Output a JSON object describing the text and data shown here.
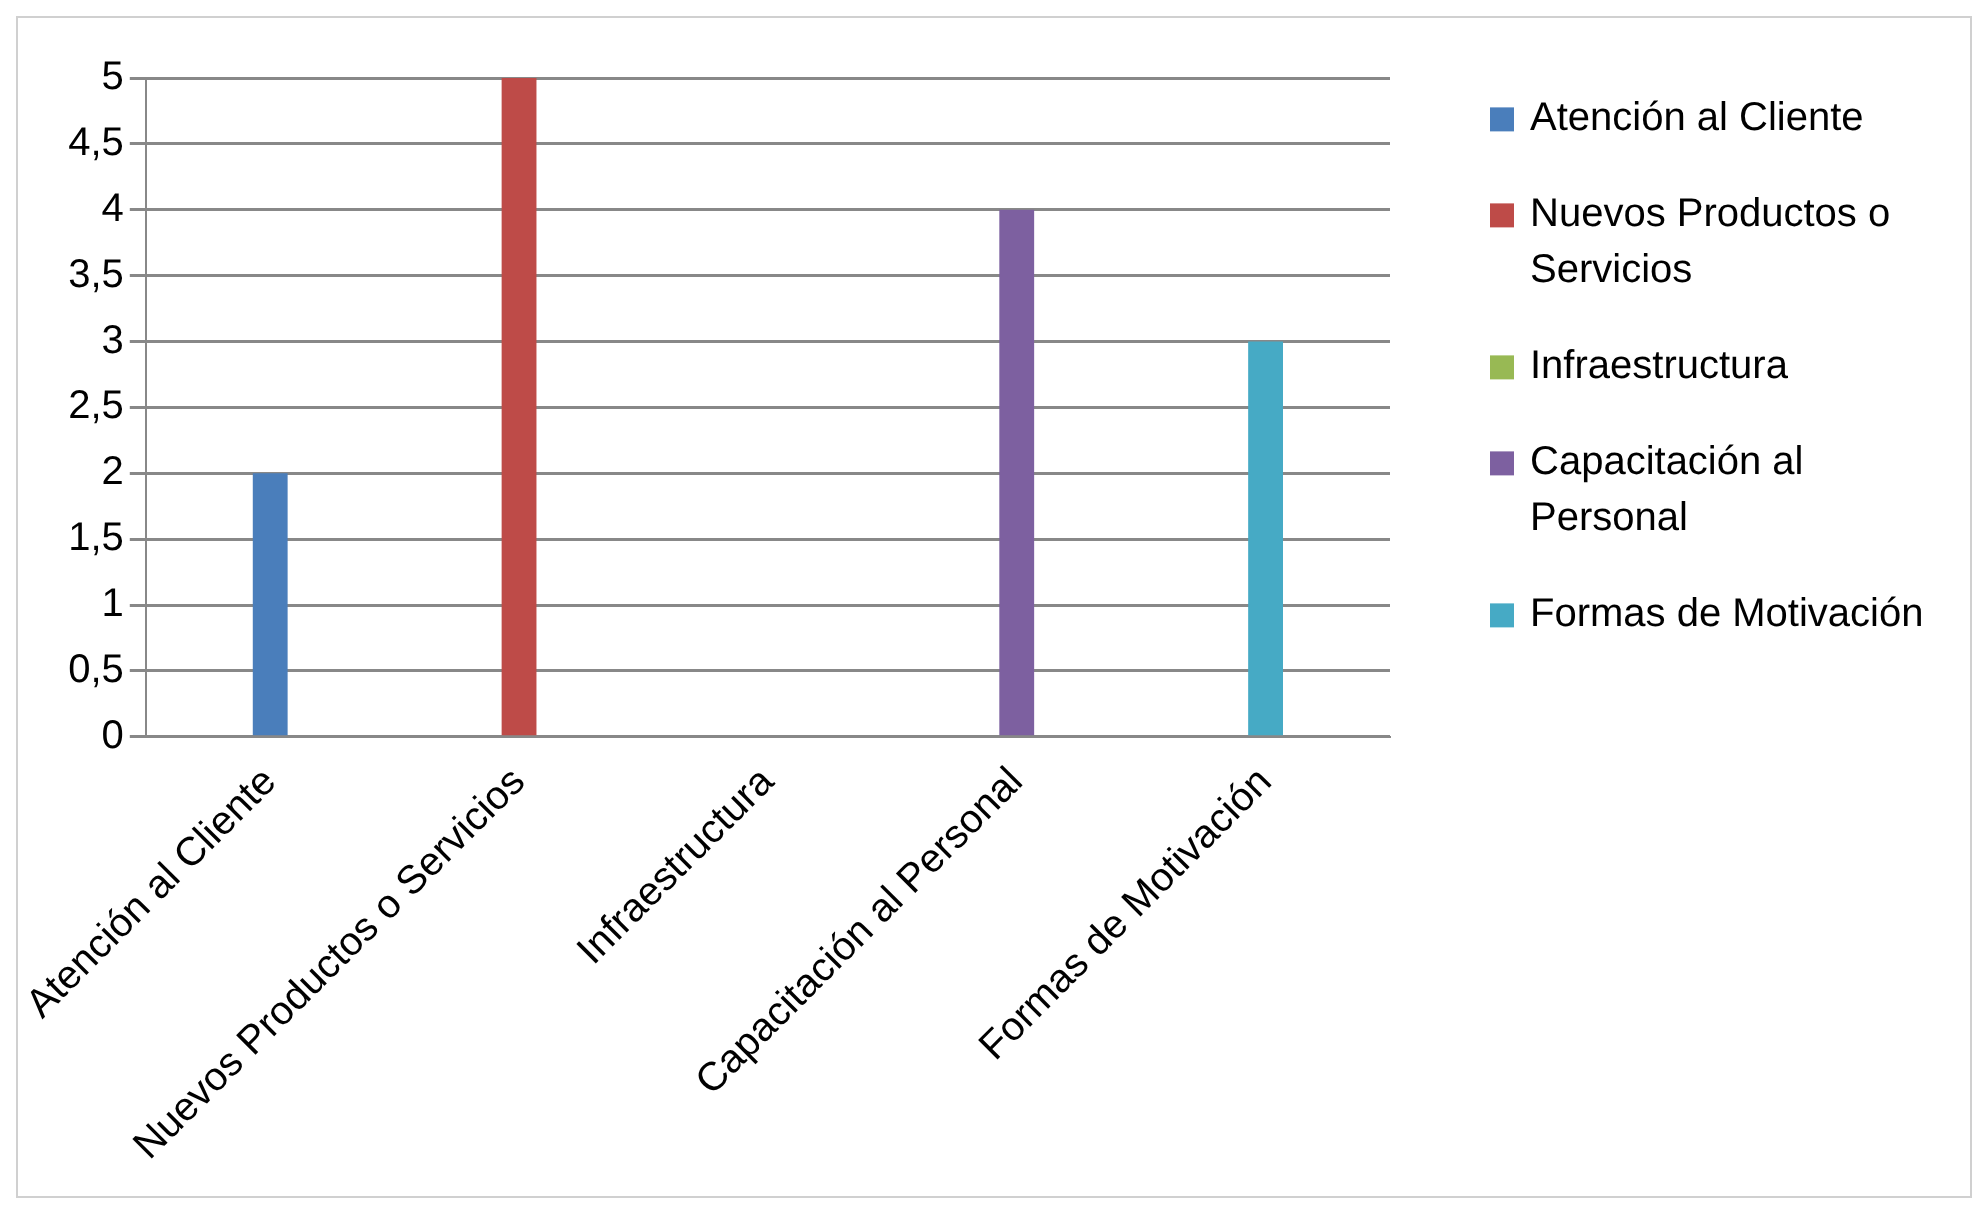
{
  "chart_data": {
    "type": "bar",
    "categories": [
      "Atención al Cliente",
      "Nuevos Productos o Servicios",
      "Infraestructura",
      "Capacitación al Personal",
      "Formas de Motivación"
    ],
    "series": [
      {
        "name": "Atención al Cliente",
        "color": "#4a7ebb",
        "values": [
          2,
          null,
          null,
          null,
          null
        ]
      },
      {
        "name": "Nuevos Productos o Servicios",
        "color": "#be4b48",
        "values": [
          null,
          5,
          null,
          null,
          null
        ]
      },
      {
        "name": "Infraestructura",
        "color": "#98b954",
        "values": [
          null,
          null,
          0,
          null,
          null
        ]
      },
      {
        "name": "Capacitación al Personal",
        "color": "#7d60a0",
        "values": [
          null,
          null,
          null,
          4,
          null
        ]
      },
      {
        "name": "Formas de Motivación",
        "color": "#46aac5",
        "values": [
          null,
          null,
          null,
          null,
          3
        ]
      }
    ],
    "ylim": [
      0,
      5
    ],
    "yticks": [
      0,
      {
        "value": 0.5,
        "label": "0,5"
      },
      1,
      {
        "value": 1.5,
        "label": "1,5"
      },
      2,
      {
        "value": 2.5,
        "label": "2,5"
      },
      3,
      {
        "value": 3.5,
        "label": "3,5"
      },
      4,
      {
        "value": 4.5,
        "label": "4,5"
      },
      5
    ],
    "grid": "y",
    "legend": "right"
  }
}
